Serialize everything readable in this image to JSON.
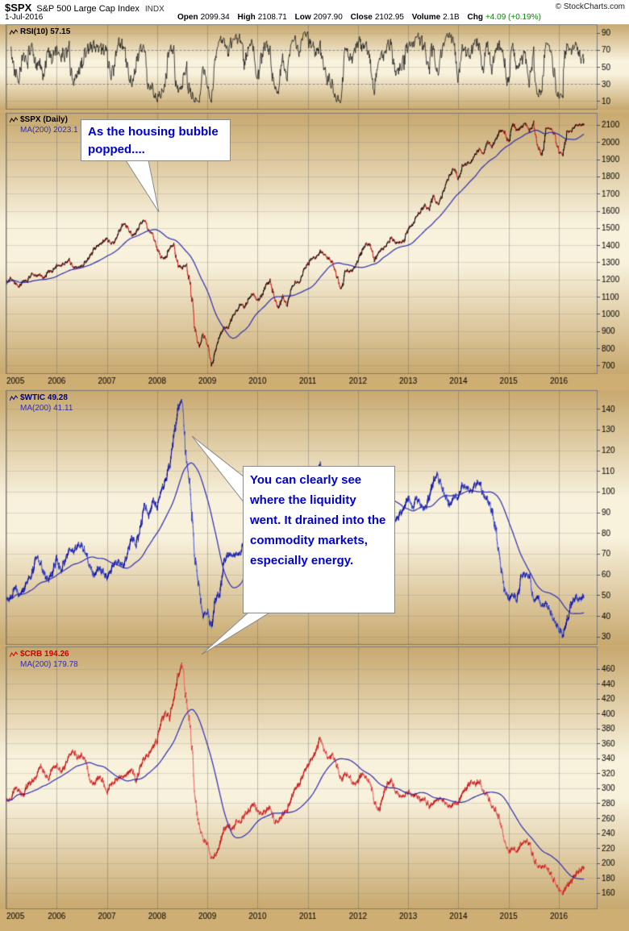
{
  "header": {
    "symbol": "$SPX",
    "name": "S&P 500 Large Cap Index",
    "exchange": "INDX",
    "copyright": "© StockCharts.com",
    "date": "1-Jul-2016",
    "quote": [
      {
        "label": "Open",
        "value": "2099.34",
        "color": "#000000"
      },
      {
        "label": "High",
        "value": "2108.71",
        "color": "#000000"
      },
      {
        "label": "Low",
        "value": "2097.90",
        "color": "#000000"
      },
      {
        "label": "Close",
        "value": "2102.95",
        "color": "#000000"
      },
      {
        "label": "Volume",
        "value": "2.1B",
        "color": "#000000"
      },
      {
        "label": "Chg",
        "value": "+4.09 (+0.19%)",
        "color": "#008800"
      }
    ]
  },
  "annotations": {
    "spx": "As the housing bubble popped....",
    "wtic": "You can clearly see where the liquidity went. It drained into the commodity markets, especially energy."
  },
  "colors": {
    "band_edge": "#c8a96f",
    "band_center": "#f8f1dc",
    "panel_border": "#7a7a7a",
    "grid_v": "rgba(90,90,90,0.35)",
    "grid_h": "rgba(120,120,120,0.22)",
    "axis_text": "#000000"
  },
  "chart_data": {
    "type": "line",
    "title": "$SPX S&P 500 Large Cap Index with $WTIC and $CRB comparison",
    "x_axis": {
      "start": 2005.0,
      "end": 2016.58
    },
    "xticks": [
      "2005",
      "2006",
      "2007",
      "2008",
      "2009",
      "2010",
      "2011",
      "2012",
      "2013",
      "2014",
      "2015",
      "2016"
    ],
    "panels": [
      {
        "id": "rsi",
        "legend": [
          {
            "text": "RSI(10) 57.15",
            "color": "#000000"
          }
        ],
        "ylim": [
          0,
          100
        ],
        "yticks": [
          10,
          30,
          50,
          70,
          90
        ],
        "reflines": [
          30,
          70
        ],
        "series": [
          {
            "name": "RSI(10)",
            "type": "rsi",
            "source": "spx",
            "period": 10,
            "color": "#1a1a1a",
            "last": 57.15
          }
        ]
      },
      {
        "id": "spx",
        "legend": [
          {
            "text": "$SPX (Daily)",
            "color": "#000000"
          },
          {
            "text": "MA(200) 2023.1",
            "color": "#2d2db0"
          }
        ],
        "ylim": [
          650,
          2170
        ],
        "yticks": [
          700,
          800,
          900,
          1000,
          1100,
          1200,
          1300,
          1400,
          1500,
          1600,
          1700,
          1800,
          1900,
          2000,
          2100
        ],
        "reflines": [],
        "series": [
          {
            "name": "$SPX",
            "type": "price",
            "color_up": "#000000",
            "color_down": "#cc2222",
            "x0": 2005.0,
            "dx": 0.0833333,
            "noise": 9,
            "tick": 5,
            "seed": 1234,
            "values": [
              1181,
              1204,
              1181,
              1157,
              1192,
              1191,
              1234,
              1220,
              1229,
              1207,
              1249,
              1248,
              1280,
              1281,
              1295,
              1311,
              1270,
              1270,
              1277,
              1304,
              1336,
              1378,
              1401,
              1418,
              1438,
              1407,
              1421,
              1482,
              1531,
              1503,
              1455,
              1474,
              1527,
              1549,
              1481,
              1468,
              1379,
              1331,
              1323,
              1386,
              1400,
              1280,
              1267,
              1283,
              1166,
              920,
              800,
              880,
              830,
              690,
              798,
              873,
              919,
              919,
              987,
              1021,
              1057,
              1036,
              1096,
              1115,
              1074,
              1104,
              1169,
              1187,
              1089,
              1031,
              1102,
              1049,
              1141,
              1183,
              1181,
              1258,
              1286,
              1327,
              1326,
              1364,
              1345,
              1321,
              1292,
              1219,
              1131,
              1253,
              1247,
              1258,
              1312,
              1366,
              1408,
              1398,
              1310,
              1362,
              1379,
              1407,
              1441,
              1412,
              1416,
              1426,
              1498,
              1515,
              1569,
              1598,
              1631,
              1606,
              1686,
              1633,
              1682,
              1757,
              1806,
              1848,
              1783,
              1859,
              1872,
              1884,
              1924,
              1960,
              1931,
              2003,
              1972,
              2018,
              2068,
              2059,
              1995,
              2105,
              2068,
              2086,
              2107,
              2063,
              2104,
              1972,
              1920,
              2079,
              2080,
              2044,
              1940,
              1932,
              2060,
              2065,
              2097,
              2099,
              2103
            ]
          },
          {
            "name": "MA(200)",
            "type": "ma",
            "source": "spx",
            "window": 95,
            "color": "#2d2db0",
            "last": 2023.1
          }
        ]
      },
      {
        "id": "wtic",
        "legend": [
          {
            "text": "$WTIC 49.28",
            "color": "#000080"
          },
          {
            "text": "MA(200) 41.11",
            "color": "#2d2db0"
          }
        ],
        "ylim": [
          26,
          149
        ],
        "yticks": [
          30,
          40,
          50,
          60,
          70,
          80,
          90,
          100,
          110,
          120,
          130,
          140
        ],
        "reflines": [],
        "series": [
          {
            "name": "$WTIC",
            "type": "price",
            "color_up": "#000099",
            "color_down": "#4a5cd0",
            "x0": 2005.0,
            "dx": 0.0833333,
            "noise": 1.5,
            "tick": 0.9,
            "seed": 777,
            "values": [
              48,
              48,
              54,
              50,
              52,
              57,
              59,
              69,
              66,
              60,
              57,
              61,
              68,
              61,
              67,
              72,
              71,
              74,
              74,
              70,
              63,
              59,
              63,
              61,
              58,
              62,
              66,
              66,
              64,
              71,
              78,
              74,
              82,
              94,
              88,
              96,
              92,
              101,
              105,
              113,
              127,
              140,
              145,
              115,
              100,
              68,
              54,
              40,
              42,
              34,
              48,
              51,
              66,
              70,
              69,
              70,
              70,
              77,
              77,
              79,
              73,
              80,
              84,
              86,
              74,
              76,
              79,
              72,
              80,
              81,
              84,
              91,
              92,
              97,
              107,
              114,
              103,
              95,
              96,
              89,
              79,
              93,
              100,
              99,
              98,
              107,
              103,
              105,
              87,
              85,
              88,
              97,
              92,
              86,
              89,
              92,
              97,
              92,
              97,
              93,
              92,
              97,
              105,
              108,
              102,
              97,
              93,
              98,
              97,
              103,
              102,
              100,
              103,
              105,
              98,
              96,
              91,
              81,
              66,
              53,
              48,
              50,
              48,
              59,
              60,
              59,
              47,
              49,
              45,
              46,
              42,
              37,
              34,
              30,
              38,
              46,
              49,
              48,
              49
            ]
          },
          {
            "name": "MA(200)",
            "type": "ma",
            "source": "wtic",
            "window": 95,
            "color": "#2d2db0",
            "last": 41.11
          }
        ]
      },
      {
        "id": "crb",
        "legend": [
          {
            "text": "$CRB 194.26",
            "color": "#cc0000"
          },
          {
            "text": "MA(200) 179.78",
            "color": "#2d2db0"
          }
        ],
        "ylim": [
          138,
          490
        ],
        "yticks": [
          160,
          180,
          200,
          220,
          240,
          260,
          280,
          300,
          320,
          340,
          360,
          380,
          400,
          420,
          440,
          460
        ],
        "reflines": [],
        "series": [
          {
            "name": "$CRB",
            "type": "price",
            "color_up": "#c00000",
            "color_down": "#e66a6a",
            "x0": 2005.0,
            "dx": 0.0833333,
            "noise": 3.2,
            "tick": 2.0,
            "seed": 4242,
            "values": [
              283,
              285,
              300,
              296,
              290,
              305,
              308,
              315,
              330,
              322,
              310,
              328,
              330,
              322,
              330,
              345,
              350,
              340,
              345,
              335,
              310,
              305,
              315,
              310,
              295,
              305,
              310,
              315,
              315,
              320,
              325,
              310,
              330,
              340,
              345,
              355,
              365,
              390,
              400,
              395,
              420,
              450,
              468,
              415,
              380,
              290,
              250,
              230,
              225,
              205,
              210,
              225,
              245,
              250,
              245,
              255,
              255,
              265,
              270,
              280,
              270,
              265,
              270,
              275,
              255,
              255,
              265,
              270,
              285,
              300,
              305,
              320,
              330,
              340,
              350,
              368,
              350,
              340,
              345,
              330,
              310,
              320,
              315,
              305,
              310,
              320,
              315,
              305,
              280,
              270,
              290,
              305,
              310,
              295,
              290,
              290,
              295,
              290,
              290,
              285,
              285,
              275,
              280,
              285,
              285,
              280,
              275,
              280,
              280,
              295,
              300,
              310,
              305,
              310,
              295,
              290,
              275,
              270,
              255,
              230,
              215,
              220,
              215,
              225,
              230,
              225,
              205,
              195,
              195,
              195,
              185,
              175,
              165,
              160,
              170,
              175,
              185,
              190,
              194
            ]
          },
          {
            "name": "MA(200)",
            "type": "ma",
            "source": "crb",
            "window": 95,
            "color": "#2d2db0",
            "last": 179.78
          }
        ]
      }
    ]
  }
}
